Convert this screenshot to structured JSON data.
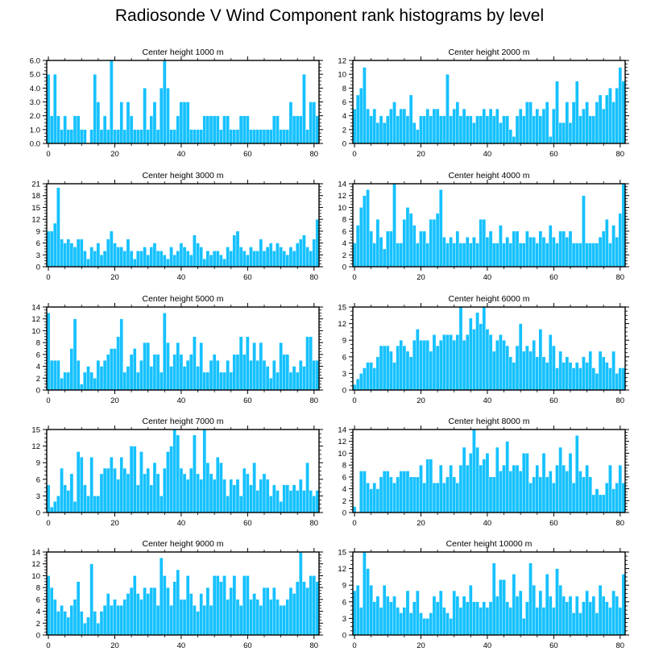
{
  "chart_data": {
    "title": "Radiosonde V Wind Component rank histograms by level",
    "type": "bar",
    "bar_color": "#16c1ff",
    "axis_color": "#000000",
    "x_categories_count": 82,
    "xlim": [
      -0.5,
      81.5
    ],
    "x_ticks": [
      0,
      20,
      40,
      60,
      80
    ],
    "panels": [
      {
        "title": "Center height 1000 m",
        "ylim": [
          0,
          6
        ],
        "y_ticks": [
          0,
          1,
          2,
          3,
          4,
          5,
          6
        ],
        "y_tick_labels": [
          "0.0",
          "1.0",
          "2.0",
          "3.0",
          "4.0",
          "5.0",
          "6.0"
        ],
        "values": [
          5,
          2,
          5,
          2,
          1,
          2,
          1,
          1,
          2,
          2,
          1,
          1,
          0,
          1,
          5,
          3,
          1,
          2,
          1,
          6,
          1,
          1,
          3,
          1,
          3,
          2,
          1,
          1,
          1,
          4,
          1,
          2,
          3,
          1,
          4,
          6,
          4,
          1,
          1,
          2,
          3,
          3,
          3,
          1,
          1,
          1,
          1,
          2,
          2,
          2,
          2,
          2,
          1,
          2,
          2,
          1,
          1,
          1,
          2,
          2,
          2,
          1,
          1,
          1,
          1,
          1,
          1,
          1,
          2,
          2,
          1,
          1,
          1,
          3,
          2,
          2,
          2,
          5,
          1,
          3,
          3,
          2
        ]
      },
      {
        "title": "Center height 2000 m",
        "ylim": [
          0,
          12
        ],
        "y_ticks": [
          0,
          2,
          4,
          6,
          8,
          10,
          12
        ],
        "y_tick_labels": [
          "0",
          "2",
          "4",
          "6",
          "8",
          "10",
          "12"
        ],
        "values": [
          5,
          7,
          8,
          11,
          5,
          4,
          5,
          3,
          4,
          3,
          4,
          5,
          6,
          4,
          5,
          5,
          4,
          7,
          3,
          2,
          4,
          4,
          5,
          4,
          5,
          5,
          4,
          4,
          10,
          4,
          5,
          6,
          4,
          5,
          4,
          4,
          3,
          4,
          4,
          5,
          4,
          5,
          4,
          5,
          3,
          4,
          4,
          2,
          1,
          4,
          5,
          4,
          6,
          6,
          4,
          5,
          4,
          5,
          6,
          1,
          5,
          9,
          3,
          3,
          6,
          3,
          6,
          9,
          4,
          5,
          6,
          4,
          4,
          6,
          7,
          5,
          7,
          8,
          6,
          8,
          11,
          9
        ]
      },
      {
        "title": "Center height 3000 m",
        "ylim": [
          0,
          21
        ],
        "y_ticks": [
          0,
          3,
          6,
          9,
          12,
          15,
          18,
          21
        ],
        "y_tick_labels": [
          "0",
          "3",
          "6",
          "9",
          "12",
          "15",
          "18",
          "21"
        ],
        "values": [
          9,
          9,
          11,
          20,
          7,
          6,
          7,
          6,
          5,
          7,
          7,
          4,
          2,
          5,
          4,
          6,
          3,
          4,
          7,
          9,
          6,
          5,
          5,
          4,
          7,
          4,
          2,
          4,
          4,
          5,
          3,
          5,
          6,
          4,
          4,
          3,
          2,
          5,
          3,
          4,
          6,
          5,
          4,
          3,
          8,
          6,
          5,
          2,
          4,
          3,
          4,
          4,
          3,
          2,
          5,
          4,
          8,
          9,
          5,
          4,
          3,
          5,
          4,
          4,
          7,
          4,
          5,
          6,
          4,
          6,
          5,
          4,
          3,
          5,
          4,
          6,
          7,
          8,
          5,
          4,
          7,
          12
        ]
      },
      {
        "title": "Center height 4000 m",
        "ylim": [
          0,
          14
        ],
        "y_ticks": [
          0,
          2,
          4,
          6,
          8,
          10,
          12,
          14
        ],
        "y_tick_labels": [
          "0",
          "2",
          "4",
          "6",
          "8",
          "10",
          "12",
          "14"
        ],
        "values": [
          4,
          7,
          10,
          12,
          13,
          6,
          4,
          8,
          5,
          3,
          6,
          6,
          14,
          4,
          4,
          8,
          10,
          9,
          7,
          4,
          6,
          6,
          4,
          8,
          8,
          9,
          13,
          5,
          4,
          5,
          4,
          6,
          4,
          4,
          5,
          4,
          5,
          4,
          8,
          8,
          5,
          6,
          4,
          4,
          7,
          4,
          5,
          4,
          6,
          6,
          4,
          4,
          6,
          5,
          5,
          4,
          6,
          5,
          4,
          7,
          5,
          4,
          6,
          6,
          5,
          6,
          4,
          4,
          4,
          12,
          4,
          4,
          4,
          4,
          5,
          6,
          8,
          4,
          7,
          5,
          9,
          14
        ]
      },
      {
        "title": "Center height 5000 m",
        "ylim": [
          0,
          14
        ],
        "y_ticks": [
          0,
          2,
          4,
          6,
          8,
          10,
          12,
          14
        ],
        "y_tick_labels": [
          "0",
          "2",
          "4",
          "6",
          "8",
          "10",
          "12",
          "14"
        ],
        "values": [
          13,
          5,
          5,
          5,
          2,
          3,
          3,
          7,
          12,
          5,
          1,
          3,
          4,
          3,
          2,
          5,
          4,
          5,
          6,
          7,
          7,
          9,
          12,
          3,
          4,
          6,
          7,
          3,
          5,
          8,
          8,
          4,
          6,
          6,
          3,
          13,
          8,
          4,
          6,
          8,
          6,
          4,
          5,
          6,
          9,
          4,
          8,
          3,
          3,
          5,
          6,
          5,
          3,
          3,
          5,
          3,
          6,
          6,
          9,
          6,
          9,
          5,
          8,
          5,
          8,
          5,
          4,
          2,
          5,
          3,
          8,
          6,
          6,
          3,
          4,
          3,
          5,
          4,
          9,
          9,
          5,
          5
        ]
      },
      {
        "title": "Center height 6000 m",
        "ylim": [
          0,
          15
        ],
        "y_ticks": [
          0,
          3,
          6,
          9,
          12,
          15
        ],
        "y_tick_labels": [
          "0",
          "3",
          "6",
          "9",
          "12",
          "15"
        ],
        "values": [
          1,
          2,
          3,
          4,
          5,
          5,
          4,
          6,
          8,
          8,
          8,
          7,
          5,
          8,
          9,
          8,
          7,
          6,
          9,
          11,
          9,
          9,
          9,
          7,
          10,
          8,
          9,
          10,
          10,
          10,
          9,
          10,
          15,
          9,
          10,
          13,
          11,
          14,
          12,
          15,
          11,
          10,
          7,
          9,
          10,
          9,
          8,
          6,
          5,
          8,
          12,
          7,
          8,
          7,
          9,
          6,
          11,
          6,
          5,
          10,
          8,
          4,
          7,
          5,
          6,
          5,
          4,
          5,
          4,
          6,
          5,
          7,
          4,
          3,
          7,
          6,
          5,
          4,
          7,
          3,
          4,
          4
        ]
      },
      {
        "title": "Center height 7000 m",
        "ylim": [
          0,
          15
        ],
        "y_ticks": [
          0,
          3,
          6,
          9,
          12,
          15
        ],
        "y_tick_labels": [
          "0",
          "3",
          "6",
          "9",
          "12",
          "15"
        ],
        "values": [
          5,
          1,
          2,
          3,
          8,
          5,
          4,
          7,
          2,
          11,
          10,
          5,
          3,
          10,
          3,
          3,
          7,
          8,
          8,
          10,
          8,
          6,
          10,
          8,
          7,
          12,
          12,
          5,
          11,
          7,
          8,
          5,
          9,
          7,
          3,
          8,
          11,
          12,
          15,
          14,
          8,
          7,
          6,
          8,
          14,
          7,
          6,
          15,
          9,
          7,
          6,
          10,
          9,
          6,
          3,
          6,
          5,
          6,
          3,
          8,
          7,
          5,
          9,
          4,
          6,
          7,
          6,
          3,
          5,
          4,
          2,
          5,
          5,
          4,
          5,
          4,
          6,
          4,
          9,
          4,
          3,
          4
        ]
      },
      {
        "title": "Center height 8000 m",
        "ylim": [
          0,
          14
        ],
        "y_ticks": [
          0,
          2,
          4,
          6,
          8,
          10,
          12,
          14
        ],
        "y_tick_labels": [
          "0",
          "2",
          "4",
          "6",
          "8",
          "10",
          "12",
          "14"
        ],
        "values": [
          1,
          0,
          7,
          7,
          5,
          4,
          5,
          4,
          6,
          7,
          7,
          6,
          5,
          6,
          7,
          7,
          7,
          6,
          6,
          6,
          8,
          5,
          9,
          9,
          5,
          5,
          8,
          5,
          6,
          8,
          6,
          5,
          8,
          11,
          8,
          10,
          14,
          11,
          8,
          9,
          10,
          6,
          6,
          11,
          7,
          8,
          12,
          7,
          8,
          8,
          7,
          10,
          10,
          5,
          6,
          8,
          6,
          10,
          6,
          7,
          5,
          8,
          11,
          8,
          7,
          10,
          5,
          13,
          7,
          6,
          8,
          6,
          3,
          4,
          3,
          3,
          5,
          8,
          4,
          5,
          8,
          5
        ]
      },
      {
        "title": "Center height 9000 m",
        "ylim": [
          0,
          14
        ],
        "y_ticks": [
          0,
          2,
          4,
          6,
          8,
          10,
          12,
          14
        ],
        "y_tick_labels": [
          "0",
          "2",
          "4",
          "6",
          "8",
          "10",
          "12",
          "14"
        ],
        "values": [
          10,
          8,
          6,
          4,
          5,
          4,
          3,
          5,
          6,
          9,
          4,
          2,
          3,
          12,
          4,
          2,
          4,
          5,
          7,
          5,
          6,
          5,
          5,
          6,
          7,
          8,
          10,
          7,
          6,
          8,
          7,
          8,
          8,
          5,
          13,
          10,
          8,
          5,
          9,
          11,
          6,
          6,
          10,
          7,
          5,
          4,
          7,
          5,
          8,
          5,
          10,
          10,
          9,
          10,
          6,
          8,
          10,
          6,
          5,
          10,
          10,
          6,
          7,
          6,
          5,
          8,
          8,
          6,
          8,
          6,
          5,
          5,
          6,
          8,
          7,
          9,
          14,
          9,
          8,
          10,
          10,
          9
        ]
      },
      {
        "title": "Center height 10000 m",
        "ylim": [
          0,
          15
        ],
        "y_ticks": [
          0,
          3,
          6,
          9,
          12,
          15
        ],
        "y_tick_labels": [
          "0",
          "3",
          "6",
          "9",
          "12",
          "15"
        ],
        "values": [
          8,
          9,
          5,
          15,
          12,
          9,
          6,
          7,
          5,
          9,
          7,
          6,
          7,
          5,
          4,
          5,
          8,
          4,
          6,
          8,
          4,
          3,
          3,
          4,
          7,
          6,
          8,
          5,
          4,
          3,
          8,
          7,
          5,
          7,
          6,
          9,
          6,
          6,
          5,
          6,
          5,
          6,
          13,
          7,
          10,
          10,
          6,
          5,
          11,
          7,
          8,
          3,
          6,
          13,
          9,
          5,
          8,
          5,
          11,
          7,
          5,
          12,
          9,
          7,
          6,
          7,
          4,
          7,
          4,
          6,
          8,
          6,
          7,
          4,
          9,
          7,
          6,
          5,
          8,
          7,
          5,
          11
        ]
      }
    ]
  }
}
